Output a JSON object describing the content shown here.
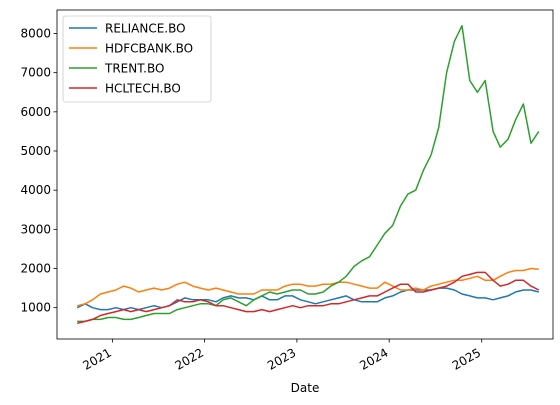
{
  "chart_data": {
    "type": "line",
    "xlabel": "Date",
    "ylabel": "",
    "x_ticks": [
      "2021",
      "2022",
      "2023",
      "2024",
      "2025"
    ],
    "y_ticks": [
      1000,
      2000,
      3000,
      4000,
      5000,
      6000,
      7000,
      8000
    ],
    "xlim": [
      "2020-05-27",
      "2025-10-10"
    ],
    "ylim": [
      200,
      8600
    ],
    "grid": false,
    "legend_position": "top-left",
    "series": [
      {
        "name": "RELIANCE.BO",
        "color": "#1f77b4",
        "x": [
          "2020-08-15",
          "2020-09-15",
          "2020-10-15",
          "2020-11-15",
          "2020-12-15",
          "2021-01-15",
          "2021-02-15",
          "2021-03-15",
          "2021-04-15",
          "2021-05-15",
          "2021-06-15",
          "2021-07-15",
          "2021-08-15",
          "2021-09-15",
          "2021-10-15",
          "2021-11-15",
          "2021-12-15",
          "2022-01-15",
          "2022-02-15",
          "2022-03-15",
          "2022-04-15",
          "2022-05-15",
          "2022-06-15",
          "2022-07-15",
          "2022-08-15",
          "2022-09-15",
          "2022-10-15",
          "2022-11-15",
          "2022-12-15",
          "2023-01-15",
          "2023-02-15",
          "2023-03-15",
          "2023-04-15",
          "2023-05-15",
          "2023-06-15",
          "2023-07-15",
          "2023-08-15",
          "2023-09-15",
          "2023-10-15",
          "2023-11-15",
          "2023-12-15",
          "2024-01-15",
          "2024-02-15",
          "2024-03-15",
          "2024-04-15",
          "2024-05-15",
          "2024-06-15",
          "2024-07-15",
          "2024-08-15",
          "2024-09-15",
          "2024-10-15",
          "2024-11-15",
          "2024-12-15",
          "2025-01-15",
          "2025-02-15",
          "2025-03-15",
          "2025-04-15",
          "2025-05-15",
          "2025-06-15",
          "2025-07-15",
          "2025-08-15"
        ],
        "values": [
          1000,
          1100,
          1000,
          950,
          950,
          1000,
          950,
          1000,
          950,
          1000,
          1050,
          1000,
          1050,
          1150,
          1250,
          1200,
          1200,
          1200,
          1150,
          1250,
          1300,
          1250,
          1250,
          1200,
          1300,
          1200,
          1200,
          1300,
          1300,
          1200,
          1150,
          1100,
          1150,
          1200,
          1250,
          1300,
          1200,
          1150,
          1150,
          1150,
          1250,
          1300,
          1400,
          1450,
          1450,
          1450,
          1450,
          1500,
          1500,
          1450,
          1350,
          1300,
          1250,
          1250,
          1200,
          1250,
          1300,
          1400,
          1450,
          1450,
          1400
        ]
      },
      {
        "name": "HDFCBANK.BO",
        "color": "#ff7f0e",
        "x": [
          "2020-08-15",
          "2020-09-15",
          "2020-10-15",
          "2020-11-15",
          "2020-12-15",
          "2021-01-15",
          "2021-02-15",
          "2021-03-15",
          "2021-04-15",
          "2021-05-15",
          "2021-06-15",
          "2021-07-15",
          "2021-08-15",
          "2021-09-15",
          "2021-10-15",
          "2021-11-15",
          "2021-12-15",
          "2022-01-15",
          "2022-02-15",
          "2022-03-15",
          "2022-04-15",
          "2022-05-15",
          "2022-06-15",
          "2022-07-15",
          "2022-08-15",
          "2022-09-15",
          "2022-10-15",
          "2022-11-15",
          "2022-12-15",
          "2023-01-15",
          "2023-02-15",
          "2023-03-15",
          "2023-04-15",
          "2023-05-15",
          "2023-06-15",
          "2023-07-15",
          "2023-08-15",
          "2023-09-15",
          "2023-10-15",
          "2023-11-15",
          "2023-12-15",
          "2024-01-15",
          "2024-02-15",
          "2024-03-15",
          "2024-04-15",
          "2024-05-15",
          "2024-06-15",
          "2024-07-15",
          "2024-08-15",
          "2024-09-15",
          "2024-10-15",
          "2024-11-15",
          "2024-12-15",
          "2025-01-15",
          "2025-02-15",
          "2025-03-15",
          "2025-04-15",
          "2025-05-15",
          "2025-06-15",
          "2025-07-15",
          "2025-08-15"
        ],
        "values": [
          1050,
          1100,
          1200,
          1350,
          1400,
          1450,
          1550,
          1500,
          1400,
          1450,
          1500,
          1450,
          1500,
          1600,
          1650,
          1550,
          1500,
          1450,
          1500,
          1450,
          1400,
          1350,
          1350,
          1350,
          1450,
          1450,
          1450,
          1550,
          1600,
          1600,
          1550,
          1550,
          1600,
          1600,
          1650,
          1650,
          1600,
          1550,
          1500,
          1500,
          1650,
          1550,
          1450,
          1450,
          1500,
          1450,
          1550,
          1600,
          1650,
          1700,
          1700,
          1750,
          1800,
          1700,
          1700,
          1800,
          1900,
          1950,
          1950,
          2000,
          1980
        ]
      },
      {
        "name": "TRENT.BO",
        "color": "#2ca02c",
        "x": [
          "2020-08-15",
          "2020-09-15",
          "2020-10-15",
          "2020-11-15",
          "2020-12-15",
          "2021-01-15",
          "2021-02-15",
          "2021-03-15",
          "2021-04-15",
          "2021-05-15",
          "2021-06-15",
          "2021-07-15",
          "2021-08-15",
          "2021-09-15",
          "2021-10-15",
          "2021-11-15",
          "2021-12-15",
          "2022-01-15",
          "2022-02-15",
          "2022-03-15",
          "2022-04-15",
          "2022-05-15",
          "2022-06-15",
          "2022-07-15",
          "2022-08-15",
          "2022-09-15",
          "2022-10-15",
          "2022-11-15",
          "2022-12-15",
          "2023-01-15",
          "2023-02-15",
          "2023-03-15",
          "2023-04-15",
          "2023-05-15",
          "2023-06-15",
          "2023-07-15",
          "2023-08-15",
          "2023-09-15",
          "2023-10-15",
          "2023-11-15",
          "2023-12-15",
          "2024-01-15",
          "2024-02-15",
          "2024-03-15",
          "2024-04-15",
          "2024-05-15",
          "2024-06-15",
          "2024-07-15",
          "2024-08-15",
          "2024-09-15",
          "2024-10-15",
          "2024-11-15",
          "2024-12-15",
          "2025-01-15",
          "2025-02-15",
          "2025-03-15",
          "2025-04-15",
          "2025-05-15",
          "2025-06-15",
          "2025-07-15",
          "2025-08-15"
        ],
        "values": [
          650,
          650,
          700,
          700,
          750,
          750,
          700,
          700,
          750,
          800,
          850,
          850,
          850,
          950,
          1000,
          1050,
          1100,
          1100,
          1050,
          1200,
          1250,
          1150,
          1050,
          1200,
          1300,
          1400,
          1350,
          1400,
          1450,
          1450,
          1350,
          1350,
          1400,
          1550,
          1650,
          1800,
          2050,
          2200,
          2300,
          2600,
          2900,
          3100,
          3600,
          3900,
          4000,
          4500,
          4900,
          5600,
          7000,
          7800,
          8200,
          6800,
          6500,
          6800,
          5500,
          5100,
          5300,
          5800,
          6200,
          5200,
          5500
        ]
      },
      {
        "name": "HCLTECH.BO",
        "color": "#d62728",
        "x": [
          "2020-08-15",
          "2020-09-15",
          "2020-10-15",
          "2020-11-15",
          "2020-12-15",
          "2021-01-15",
          "2021-02-15",
          "2021-03-15",
          "2021-04-15",
          "2021-05-15",
          "2021-06-15",
          "2021-07-15",
          "2021-08-15",
          "2021-09-15",
          "2021-10-15",
          "2021-11-15",
          "2021-12-15",
          "2022-01-15",
          "2022-02-15",
          "2022-03-15",
          "2022-04-15",
          "2022-05-15",
          "2022-06-15",
          "2022-07-15",
          "2022-08-15",
          "2022-09-15",
          "2022-10-15",
          "2022-11-15",
          "2022-12-15",
          "2023-01-15",
          "2023-02-15",
          "2023-03-15",
          "2023-04-15",
          "2023-05-15",
          "2023-06-15",
          "2023-07-15",
          "2023-08-15",
          "2023-09-15",
          "2023-10-15",
          "2023-11-15",
          "2023-12-15",
          "2024-01-15",
          "2024-02-15",
          "2024-03-15",
          "2024-04-15",
          "2024-05-15",
          "2024-06-15",
          "2024-07-15",
          "2024-08-15",
          "2024-09-15",
          "2024-10-15",
          "2024-11-15",
          "2024-12-15",
          "2025-01-15",
          "2025-02-15",
          "2025-03-15",
          "2025-04-15",
          "2025-05-15",
          "2025-06-15",
          "2025-07-15",
          "2025-08-15"
        ],
        "values": [
          600,
          650,
          700,
          800,
          850,
          900,
          950,
          900,
          950,
          900,
          950,
          1000,
          1050,
          1200,
          1150,
          1150,
          1200,
          1150,
          1050,
          1050,
          1000,
          950,
          900,
          900,
          950,
          900,
          950,
          1000,
          1050,
          1000,
          1050,
          1050,
          1050,
          1100,
          1100,
          1150,
          1200,
          1250,
          1300,
          1300,
          1400,
          1500,
          1600,
          1600,
          1400,
          1400,
          1450,
          1500,
          1550,
          1650,
          1800,
          1850,
          1900,
          1900,
          1700,
          1550,
          1600,
          1700,
          1700,
          1550,
          1450
        ]
      }
    ]
  }
}
